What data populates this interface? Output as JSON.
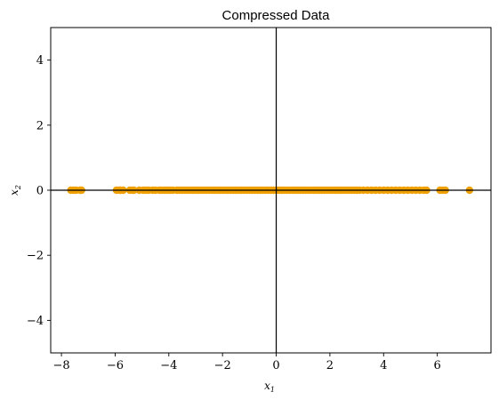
{
  "chart_data": {
    "type": "scatter",
    "title": "Compressed Data",
    "xlabel_main": "x",
    "xlabel_sub": "1",
    "ylabel_main": "x",
    "ylabel_sub": "2",
    "xlim": [
      -8.4,
      8.0
    ],
    "ylim": [
      -5.0,
      5.0
    ],
    "xticks": [
      -8,
      -6,
      -4,
      -2,
      0,
      2,
      4,
      6
    ],
    "yticks": [
      -4,
      -2,
      0,
      2,
      4
    ],
    "grid": false,
    "reference_lines": {
      "x": 0,
      "y": 0
    },
    "marker_color": "#f0a000",
    "x": [
      -7.65,
      -7.55,
      -7.45,
      -7.3,
      -7.25,
      -5.95,
      -5.85,
      -5.8,
      -5.7,
      -5.45,
      -5.35,
      -5.3,
      -5.1,
      -4.95,
      -4.85,
      -4.75,
      -4.6,
      -4.5,
      -4.35,
      -4.25,
      -4.15,
      -4.05,
      -3.95,
      -3.85,
      -3.7,
      -3.6,
      -3.5,
      -3.4,
      -3.3,
      -3.2,
      -3.1,
      -3.0,
      -2.9,
      -2.8,
      -2.7,
      -2.6,
      -2.5,
      -2.4,
      -2.3,
      -2.2,
      -2.1,
      -2.0,
      -1.9,
      -1.8,
      -1.7,
      -1.6,
      -1.5,
      -1.4,
      -1.3,
      -1.2,
      -1.1,
      -1.0,
      -0.9,
      -0.8,
      -0.7,
      -0.6,
      -0.5,
      -0.4,
      -0.3,
      -0.2,
      -0.1,
      0.0,
      0.1,
      0.2,
      0.3,
      0.4,
      0.5,
      0.6,
      0.7,
      0.8,
      0.9,
      1.0,
      1.1,
      1.2,
      1.3,
      1.4,
      1.5,
      1.6,
      1.7,
      1.8,
      1.9,
      2.0,
      2.1,
      2.2,
      2.3,
      2.4,
      2.5,
      2.6,
      2.7,
      2.8,
      2.9,
      3.0,
      3.1,
      3.25,
      3.4,
      3.55,
      3.7,
      3.85,
      4.0,
      4.15,
      4.3,
      4.45,
      4.6,
      4.75,
      4.9,
      5.05,
      5.2,
      5.35,
      5.5,
      5.6,
      6.1,
      6.2,
      6.3,
      7.2
    ],
    "y": [
      0,
      0,
      0,
      0,
      0,
      0,
      0,
      0,
      0,
      0,
      0,
      0,
      0,
      0,
      0,
      0,
      0,
      0,
      0,
      0,
      0,
      0,
      0,
      0,
      0,
      0,
      0,
      0,
      0,
      0,
      0,
      0,
      0,
      0,
      0,
      0,
      0,
      0,
      0,
      0,
      0,
      0,
      0,
      0,
      0,
      0,
      0,
      0,
      0,
      0,
      0,
      0,
      0,
      0,
      0,
      0,
      0,
      0,
      0,
      0,
      0,
      0,
      0,
      0,
      0,
      0,
      0,
      0,
      0,
      0,
      0,
      0,
      0,
      0,
      0,
      0,
      0,
      0,
      0,
      0,
      0,
      0,
      0,
      0,
      0,
      0,
      0,
      0,
      0,
      0,
      0,
      0,
      0,
      0,
      0,
      0,
      0,
      0,
      0,
      0,
      0,
      0,
      0,
      0,
      0,
      0,
      0,
      0,
      0,
      0,
      0,
      0,
      0,
      0
    ]
  }
}
